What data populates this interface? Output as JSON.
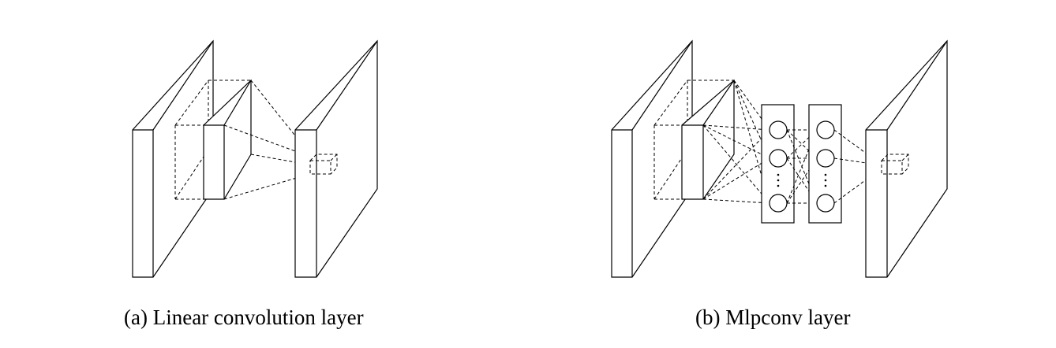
{
  "captions": {
    "a": "(a) Linear convolution layer",
    "b": "(b) Mlpconv layer"
  },
  "colors": {
    "stroke": "#000000",
    "background": "#ffffff"
  }
}
